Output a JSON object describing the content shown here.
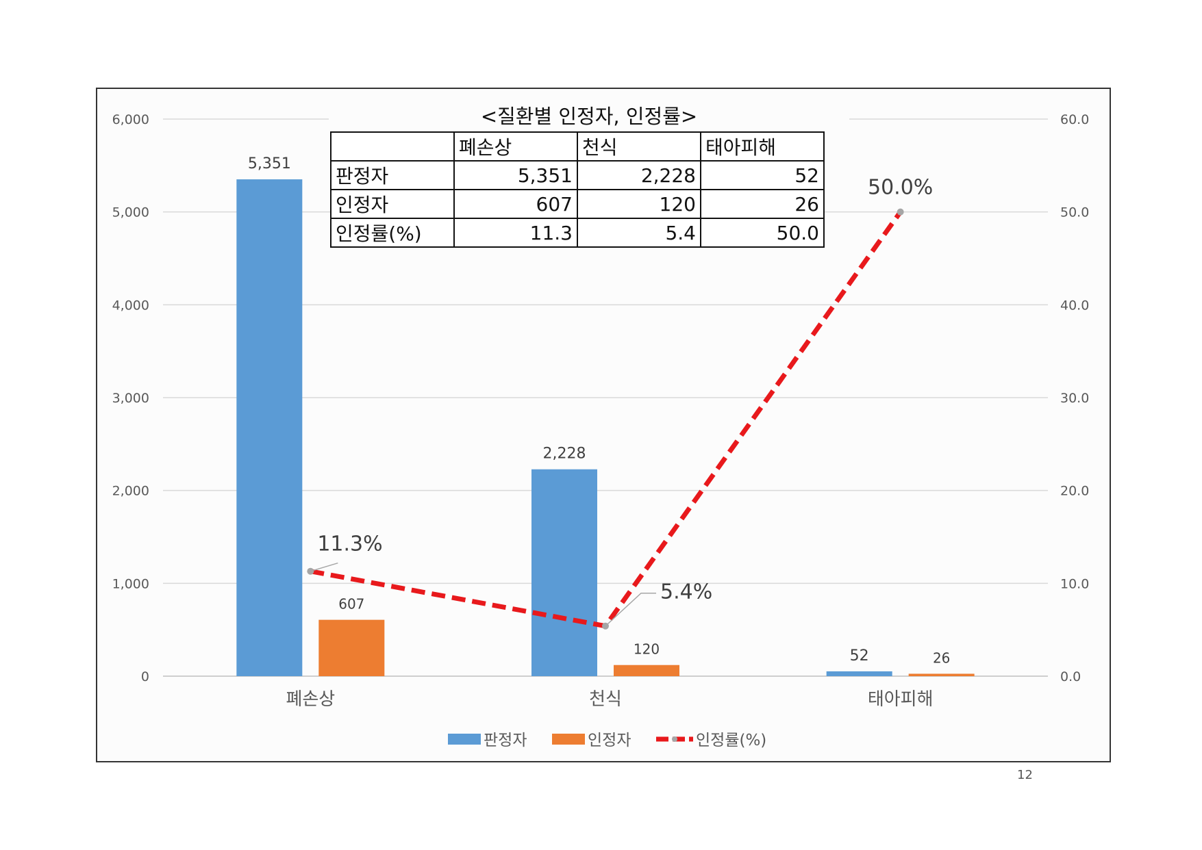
{
  "table": {
    "title": "<질환별 인정자, 인정률>",
    "headers": [
      "",
      "폐손상",
      "천식",
      "태아피해"
    ],
    "rows": [
      {
        "label": "판정자",
        "values": [
          "5,351",
          "2,228",
          "52"
        ]
      },
      {
        "label": "인정자",
        "values": [
          "607",
          "120",
          "26"
        ]
      },
      {
        "label": "인정률(%)",
        "values": [
          "11.3",
          "5.4",
          "50.0"
        ]
      }
    ]
  },
  "page_number": "12",
  "chart_data": {
    "type": "bar",
    "categories": [
      "폐손상",
      "천식",
      "태아피해"
    ],
    "series": [
      {
        "name": "판정자",
        "type": "bar",
        "axis": "left",
        "color": "#5b9bd5",
        "values": [
          5351,
          2228,
          52
        ],
        "labels": [
          "5,351",
          "2,228",
          "52"
        ]
      },
      {
        "name": "인정자",
        "type": "bar",
        "axis": "left",
        "color": "#ed7d31",
        "values": [
          607,
          120,
          26
        ],
        "labels": [
          "607",
          "120",
          "26"
        ]
      },
      {
        "name": "인정률(%)",
        "type": "line",
        "axis": "right",
        "color": "#e8191c",
        "style": "dashed",
        "values": [
          11.3,
          5.4,
          50.0
        ],
        "labels": [
          "11.3%",
          "5.4%",
          "50.0%"
        ]
      }
    ],
    "y_left": {
      "ylim": [
        0,
        6000
      ],
      "ticks": [
        0,
        1000,
        2000,
        3000,
        4000,
        5000,
        6000
      ],
      "tick_labels": [
        "0",
        "1,000",
        "2,000",
        "3,000",
        "4,000",
        "5,000",
        "6,000"
      ]
    },
    "y_right": {
      "ylim": [
        0,
        60
      ],
      "ticks": [
        0,
        10,
        20,
        30,
        40,
        50,
        60
      ],
      "tick_labels": [
        "0.0",
        "10.0",
        "20.0",
        "30.0",
        "40.0",
        "50.0",
        "60.0"
      ]
    },
    "grid": true,
    "legend": "bottom"
  }
}
